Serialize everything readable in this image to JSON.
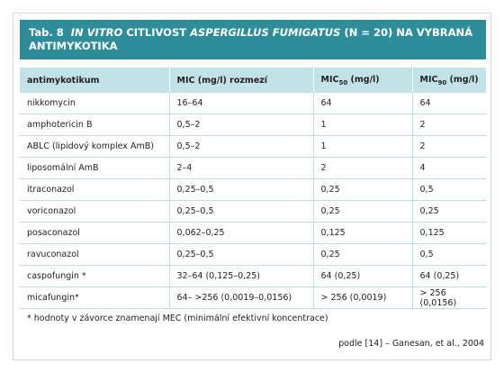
{
  "title": {
    "label": "Tab. 8",
    "parts": [
      "IN VITRO",
      "CITLIVOST",
      "ASPERGILLUS FUMIGATUS",
      "(N = 20) NA VYBRANÁ ANTIMYKOTIKA"
    ]
  },
  "table": {
    "headers": [
      {
        "main": "antimykotikum"
      },
      {
        "main": "MIC (mg/l) rozmezí"
      },
      {
        "main": "MIC",
        "sub": "50",
        "rest": "(mg/l)"
      },
      {
        "main": "MIC",
        "sub": "90",
        "rest": "(mg/l)"
      }
    ],
    "rows": [
      [
        "nikkomycin",
        "16–64",
        "64",
        "64"
      ],
      [
        "amphotericin B",
        "0,5–2",
        "1",
        "2"
      ],
      [
        "ABLC (lipidový komplex AmB)",
        "0,5–2",
        "1",
        "2"
      ],
      [
        "liposomální AmB",
        "2–4",
        "2",
        "4"
      ],
      [
        "itraconazol",
        "0,25–0,5",
        "0,25",
        "0,5"
      ],
      [
        "voriconazol",
        "0,25–0,5",
        "0,25",
        "0,25"
      ],
      [
        "posaconazol",
        "0,062–0,25",
        "0,125",
        "0,125"
      ],
      [
        "ravuconazol",
        "0,25–0,5",
        "0,25",
        "0,5"
      ],
      [
        "caspofungin *",
        "32–64 (0,125–0,25)",
        "64 (0,25)",
        "64 (0,25)"
      ],
      [
        "micafungin*",
        "64– >256 (0,0019–0,0156)",
        "> 256 (0,0019)",
        "> 256 (0,0156)"
      ]
    ]
  },
  "footnote": "* hodnoty v závorce znamenají MEC (minimální efektivní koncentrace)",
  "source": "podle [14] – Ganesan, et al., 2004"
}
